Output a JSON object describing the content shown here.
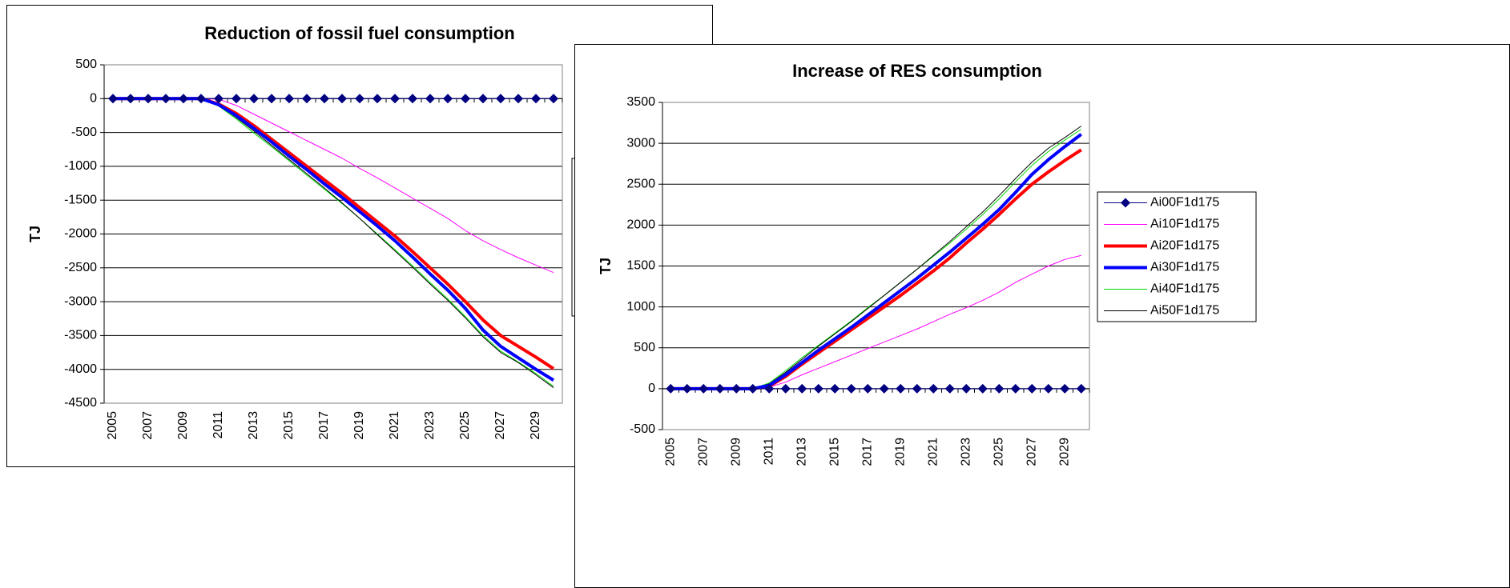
{
  "chart_data": [
    {
      "type": "line",
      "title": "Reduction of fossil fuel consumption",
      "y_label": "TJ",
      "categories": [
        "2005",
        null,
        "2007",
        null,
        "2009",
        null,
        "2011",
        null,
        "2013",
        null,
        "2015",
        null,
        "2017",
        null,
        "2019",
        null,
        "2021",
        null,
        "2023",
        null,
        "2025",
        null,
        "2027",
        null,
        "2029",
        null
      ],
      "ylim": [
        -4500,
        500
      ],
      "yticks": [
        -4500,
        -4000,
        -3500,
        -3000,
        -2500,
        -2000,
        -1500,
        -1000,
        -500,
        0,
        500
      ],
      "grid": true,
      "legend": "right",
      "series": [
        {
          "name": "Ai00F1d175",
          "color": "#000080",
          "line_width": 1,
          "marker": "diamond",
          "values": [
            0,
            0,
            0,
            0,
            0,
            0,
            0,
            0,
            0,
            0,
            0,
            0,
            0,
            0,
            0,
            0,
            0,
            0,
            0,
            0,
            0,
            0,
            0,
            0,
            0,
            0
          ]
        },
        {
          "name": "Ai10F1d175",
          "color": "#ff00ff",
          "line_width": 1,
          "values": [
            0,
            0,
            0,
            0,
            0,
            0,
            -10,
            -100,
            -230,
            -360,
            -490,
            -620,
            -750,
            -880,
            -1030,
            -1170,
            -1320,
            -1470,
            -1620,
            -1770,
            -1950,
            -2100,
            -2230,
            -2350,
            -2460,
            -2570
          ]
        },
        {
          "name": "Ai20F1d175",
          "color": "#ff0000",
          "line_width": 4,
          "values": [
            0,
            0,
            0,
            0,
            0,
            0,
            -80,
            -220,
            -400,
            -600,
            -800,
            -1000,
            -1200,
            -1400,
            -1610,
            -1820,
            -2030,
            -2260,
            -2500,
            -2740,
            -3000,
            -3270,
            -3500,
            -3660,
            -3820,
            -3990
          ]
        },
        {
          "name": "Ai30F1d175",
          "color": "#0000ff",
          "line_width": 4,
          "values": [
            0,
            0,
            0,
            0,
            0,
            0,
            -90,
            -250,
            -440,
            -640,
            -850,
            -1050,
            -1260,
            -1460,
            -1670,
            -1880,
            -2100,
            -2340,
            -2590,
            -2830,
            -3100,
            -3420,
            -3660,
            -3830,
            -4000,
            -4160
          ]
        },
        {
          "name": "Ai40F1d175",
          "color": "#00dd00",
          "line_width": 1,
          "values": [
            0,
            0,
            0,
            0,
            0,
            0,
            -110,
            -300,
            -510,
            -710,
            -920,
            -1130,
            -1340,
            -1550,
            -1770,
            -2000,
            -2230,
            -2470,
            -2720,
            -2960,
            -3220,
            -3500,
            -3730,
            -3890,
            -4060,
            -4250
          ]
        },
        {
          "name": "Ai50F1d175",
          "color": "#000000",
          "line_width": 1,
          "values": [
            0,
            0,
            0,
            0,
            0,
            0,
            -100,
            -280,
            -480,
            -690,
            -900,
            -1110,
            -1320,
            -1540,
            -1770,
            -2010,
            -2250,
            -2490,
            -2740,
            -2980,
            -3240,
            -3520,
            -3750,
            -3900,
            -4080,
            -4270
          ]
        }
      ]
    },
    {
      "type": "line",
      "title": "Increase of RES consumption",
      "y_label": "TJ",
      "categories": [
        "2005",
        null,
        "2007",
        null,
        "2009",
        null,
        "2011",
        null,
        "2013",
        null,
        "2015",
        null,
        "2017",
        null,
        "2019",
        null,
        "2021",
        null,
        "2023",
        null,
        "2025",
        null,
        "2027",
        null,
        "2029",
        null
      ],
      "ylim": [
        -500,
        3500
      ],
      "yticks": [
        -500,
        0,
        500,
        1000,
        1500,
        2000,
        2500,
        3000,
        3500
      ],
      "grid": true,
      "legend": "right",
      "series": [
        {
          "name": "Ai00F1d175",
          "color": "#000080",
          "line_width": 1,
          "marker": "diamond",
          "values": [
            0,
            0,
            0,
            0,
            0,
            0,
            0,
            0,
            0,
            0,
            0,
            0,
            0,
            0,
            0,
            0,
            0,
            0,
            0,
            0,
            0,
            0,
            0,
            0,
            0,
            0
          ]
        },
        {
          "name": "Ai10F1d175",
          "color": "#ff00ff",
          "line_width": 1,
          "values": [
            0,
            0,
            0,
            0,
            0,
            0,
            20,
            80,
            170,
            250,
            330,
            410,
            490,
            570,
            650,
            730,
            820,
            910,
            990,
            1080,
            1180,
            1300,
            1400,
            1500,
            1580,
            1630
          ]
        },
        {
          "name": "Ai20F1d175",
          "color": "#ff0000",
          "line_width": 4,
          "values": [
            0,
            0,
            0,
            0,
            0,
            0,
            30,
            150,
            300,
            440,
            580,
            720,
            860,
            1000,
            1140,
            1290,
            1440,
            1600,
            1780,
            1950,
            2130,
            2320,
            2500,
            2650,
            2790,
            2920
          ]
        },
        {
          "name": "Ai30F1d175",
          "color": "#0000ff",
          "line_width": 4,
          "values": [
            0,
            0,
            0,
            0,
            0,
            0,
            40,
            170,
            320,
            470,
            610,
            750,
            900,
            1050,
            1200,
            1350,
            1510,
            1670,
            1840,
            2010,
            2190,
            2400,
            2620,
            2800,
            2960,
            3110
          ]
        },
        {
          "name": "Ai40F1d175",
          "color": "#00dd00",
          "line_width": 1,
          "values": [
            0,
            0,
            0,
            0,
            0,
            0,
            70,
            220,
            380,
            530,
            680,
            830,
            990,
            1140,
            1300,
            1460,
            1620,
            1780,
            1950,
            2130,
            2320,
            2530,
            2730,
            2900,
            3040,
            3170
          ]
        },
        {
          "name": "Ai50F1d175",
          "color": "#000000",
          "line_width": 1,
          "values": [
            0,
            0,
            0,
            0,
            0,
            0,
            60,
            200,
            360,
            520,
            670,
            820,
            980,
            1140,
            1300,
            1460,
            1630,
            1800,
            1980,
            2160,
            2360,
            2570,
            2770,
            2940,
            3070,
            3210
          ]
        }
      ]
    }
  ]
}
